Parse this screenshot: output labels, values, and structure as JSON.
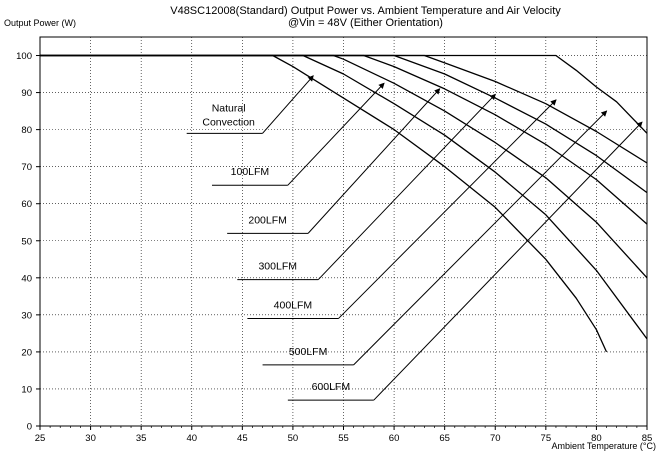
{
  "title_line1": "V48SC12008(Standard)  Output Power vs. Ambient Temperature and Air Velocity",
  "title_line2": "@Vin = 48V (Either Orientation)",
  "y_axis_label": "Output Power (W)",
  "x_axis_label": "Ambient Temperature (°C)",
  "chart_data": {
    "type": "line",
    "title": "V48SC12008(Standard)  Output Power vs. Ambient Temperature and Air Velocity @Vin = 48V (Either Orientation)",
    "xlabel": "Ambient Temperature (°C)",
    "ylabel": "Output Power (W)",
    "xlim": [
      25,
      85
    ],
    "ylim": [
      0,
      105
    ],
    "x_ticks": [
      25,
      30,
      35,
      40,
      45,
      50,
      55,
      60,
      65,
      70,
      75,
      80,
      85
    ],
    "y_ticks": [
      0,
      10,
      20,
      30,
      40,
      50,
      60,
      70,
      80,
      90,
      100
    ],
    "grid": true,
    "series": [
      {
        "name": "Natural Convection",
        "x": [
          25,
          48,
          50,
          55,
          60,
          65,
          70,
          75,
          78,
          80,
          81
        ],
        "y": [
          100,
          100,
          97,
          88.5,
          80,
          70,
          59,
          45,
          34.5,
          26,
          20
        ]
      },
      {
        "name": "100LFM",
        "x": [
          25,
          51,
          55,
          60,
          65,
          70,
          75,
          80,
          85
        ],
        "y": [
          100,
          100,
          95,
          87,
          78.5,
          68.5,
          57,
          42,
          23.5
        ]
      },
      {
        "name": "200LFM",
        "x": [
          25,
          54,
          55,
          60,
          65,
          70,
          75,
          80,
          85
        ],
        "y": [
          100,
          100,
          99,
          92.5,
          85,
          76.5,
          67,
          55,
          40
        ]
      },
      {
        "name": "300LFM",
        "x": [
          25,
          57,
          60,
          65,
          70,
          75,
          80,
          85
        ],
        "y": [
          100,
          100,
          97,
          91,
          84,
          76,
          66.5,
          54.5
        ]
      },
      {
        "name": "400LFM",
        "x": [
          25,
          60,
          65,
          70,
          75,
          80,
          85
        ],
        "y": [
          100,
          100,
          95,
          88.5,
          81.5,
          73,
          63
        ]
      },
      {
        "name": "500LFM",
        "x": [
          25,
          63,
          65,
          70,
          75,
          80,
          85
        ],
        "y": [
          100,
          100,
          98,
          93,
          87,
          79.5,
          71
        ]
      },
      {
        "name": "600LFM",
        "x": [
          25,
          76,
          78,
          80,
          82,
          85
        ],
        "y": [
          100,
          100,
          96,
          91.5,
          87.5,
          79
        ]
      }
    ],
    "annotations": [
      {
        "text": "Natural",
        "text2": "Convection",
        "shelf_x": [
          39.5,
          47
        ],
        "shelf_y": 79,
        "arrow_to": [
          52,
          94.5
        ]
      },
      {
        "text": "100LFM",
        "shelf_x": [
          42,
          49.5
        ],
        "shelf_y": 65,
        "arrow_to": [
          59,
          92.5
        ]
      },
      {
        "text": "200LFM",
        "shelf_x": [
          43.5,
          51.5
        ],
        "shelf_y": 52,
        "arrow_to": [
          64.5,
          91
        ]
      },
      {
        "text": "300LFM",
        "shelf_x": [
          44.5,
          52.5
        ],
        "shelf_y": 39.5,
        "arrow_to": [
          70,
          89.5
        ]
      },
      {
        "text": "400LFM",
        "shelf_x": [
          45.5,
          54.5
        ],
        "shelf_y": 29,
        "arrow_to": [
          76,
          88
        ]
      },
      {
        "text": "500LFM",
        "shelf_x": [
          47,
          56
        ],
        "shelf_y": 16.5,
        "arrow_to": [
          81,
          85
        ]
      },
      {
        "text": "600LFM",
        "shelf_x": [
          49.5,
          58
        ],
        "shelf_y": 7,
        "arrow_to": [
          84.5,
          82
        ]
      }
    ]
  }
}
